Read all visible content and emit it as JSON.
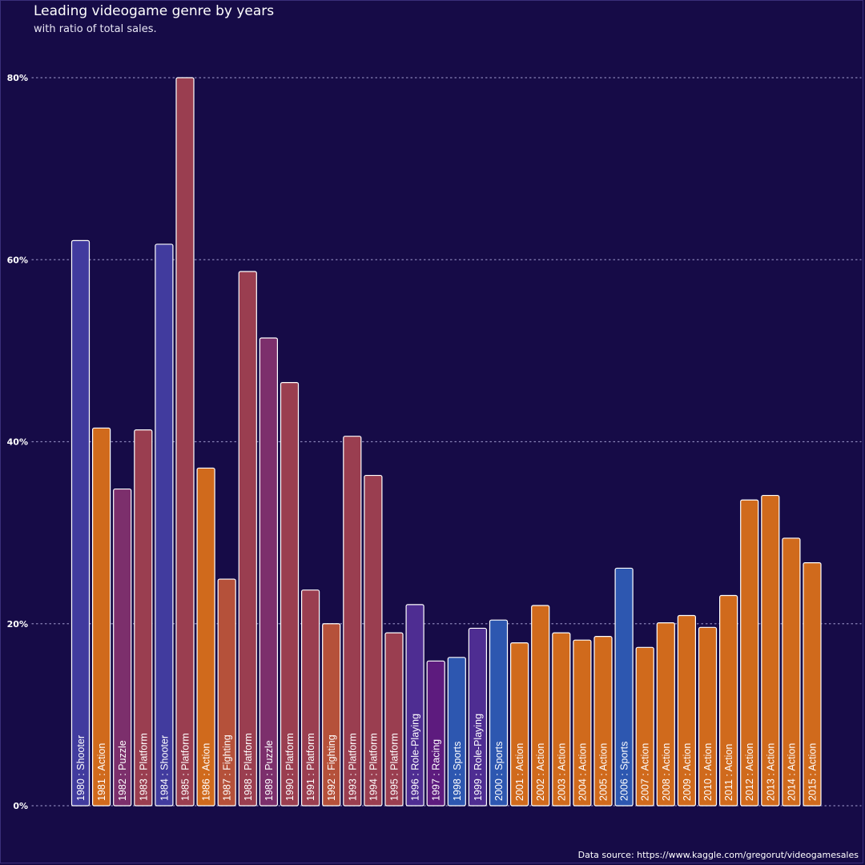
{
  "title": "Leading videogame genre by years",
  "subtitle": "with ratio of total sales.",
  "source": "Data source: https://www.kaggle.com/gregorut/videogamesales",
  "colors": {
    "background": "#160b47",
    "grid": "#8a84b8",
    "bar_stroke": "#ffffff",
    "genres": {
      "Shooter": "#413b9e",
      "Action": "#d06a1c",
      "Puzzle": "#7c2f6c",
      "Platform": "#9a3e50",
      "Fighting": "#b5513a",
      "Role-Playing": "#4e2d92",
      "Racing": "#5d1b7e",
      "Sports": "#2d57b0"
    }
  },
  "chart_data": {
    "type": "bar",
    "title": "Leading videogame genre by years",
    "subtitle": "with ratio of total sales.",
    "xlabel": "",
    "ylabel": "",
    "ylim": [
      0,
      80
    ],
    "yticks": [
      0,
      20,
      40,
      60,
      80
    ],
    "ytick_labels": [
      "0%",
      "20%",
      "40%",
      "60%",
      "80%"
    ],
    "grid": "horizontal dotted",
    "legend": "none",
    "categories": [
      "1980",
      "1981",
      "1982",
      "1983",
      "1984",
      "1985",
      "1986",
      "1987",
      "1988",
      "1989",
      "1990",
      "1991",
      "1992",
      "1993",
      "1994",
      "1995",
      "1996",
      "1997",
      "1998",
      "1999",
      "2000",
      "2001",
      "2002",
      "2003",
      "2004",
      "2005",
      "2006",
      "2007",
      "2008",
      "2009",
      "2010",
      "2011",
      "2012",
      "2013",
      "2014",
      "2015"
    ],
    "genres": [
      "Shooter",
      "Action",
      "Puzzle",
      "Platform",
      "Shooter",
      "Platform",
      "Action",
      "Fighting",
      "Platform",
      "Puzzle",
      "Platform",
      "Platform",
      "Fighting",
      "Platform",
      "Platform",
      "Platform",
      "Role-Playing",
      "Racing",
      "Sports",
      "Role-Playing",
      "Sports",
      "Action",
      "Action",
      "Action",
      "Action",
      "Action",
      "Sports",
      "Action",
      "Action",
      "Action",
      "Action",
      "Action",
      "Action",
      "Action",
      "Action",
      "Action"
    ],
    "labels": [
      "1980 : Shooter",
      "1981 : Action",
      "1982 : Puzzle",
      "1983 : Platform",
      "1984 : Shooter",
      "1985 : Platform",
      "1986 : Action",
      "1987 : Fighting",
      "1988 : Platform",
      "1989 : Puzzle",
      "1990 : Platform",
      "1991 : Platform",
      "1992 : Fighting",
      "1993 : Platform",
      "1994 : Platform",
      "1995 : Platform",
      "1996 : Role-Playing",
      "1997 : Racing",
      "1998 : Sports",
      "1999 : Role-Playing",
      "2000 : Sports",
      "2001 : Action",
      "2002 : Action",
      "2003 : Action",
      "2004 : Action",
      "2005 : Action",
      "2006 : Sports",
      "2007 : Action",
      "2008 : Action",
      "2009 : Action",
      "2010 : Action",
      "2011 : Action",
      "2012 : Action",
      "2013 : Action",
      "2014 : Action",
      "2015 : Action"
    ],
    "values": [
      62.1,
      41.5,
      34.8,
      41.3,
      61.7,
      80.0,
      37.1,
      24.9,
      58.7,
      51.4,
      46.5,
      23.7,
      20.0,
      40.6,
      36.3,
      19.0,
      22.1,
      15.9,
      16.3,
      19.5,
      20.4,
      17.9,
      22.0,
      19.0,
      18.2,
      18.6,
      26.1,
      17.4,
      20.1,
      20.9,
      19.6,
      23.1,
      33.6,
      34.1,
      29.4,
      26.7
    ]
  }
}
